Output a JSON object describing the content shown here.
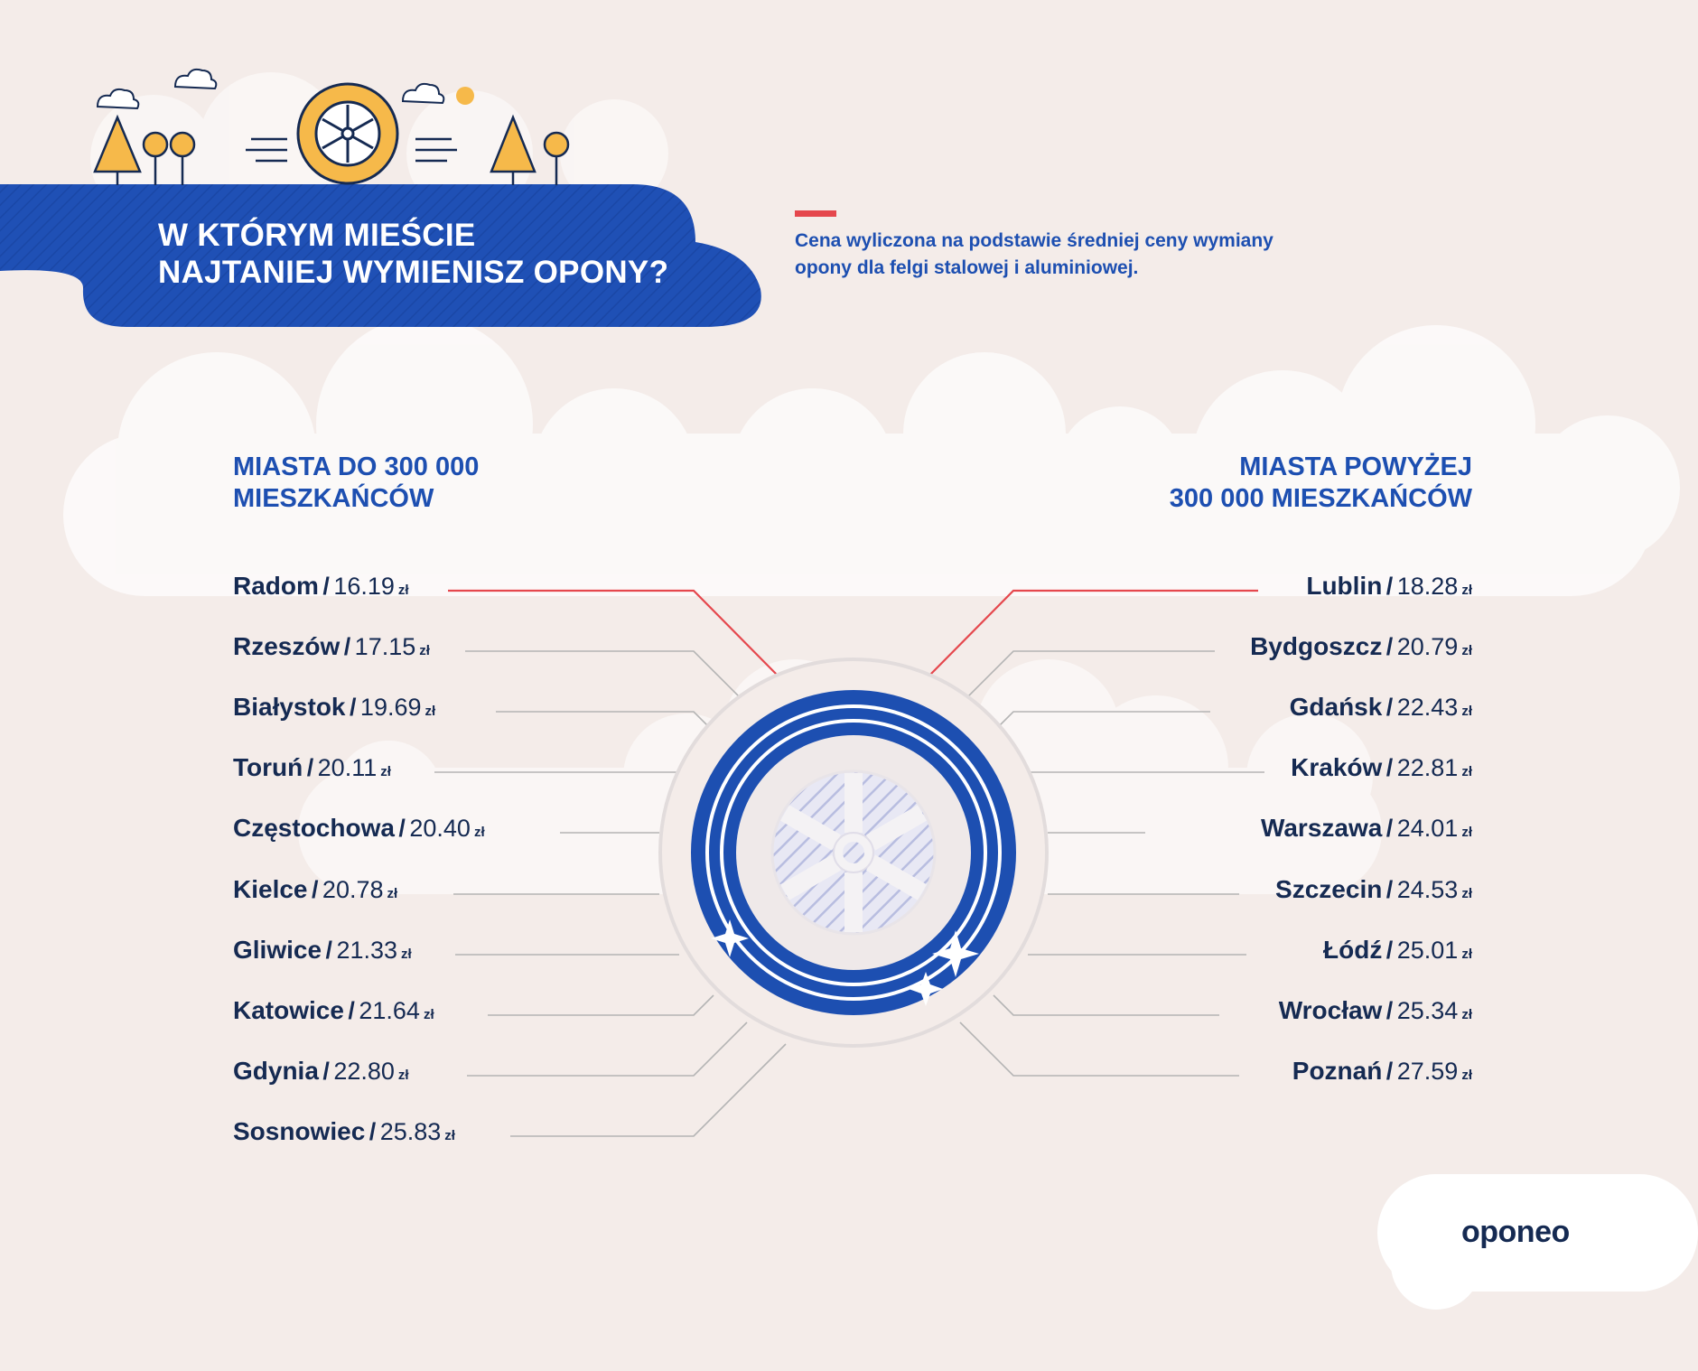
{
  "header": {
    "title_line1": "W KTÓRYM MIEŚCIE",
    "title_line2": "NAJTANIEJ WYMIENISZ OPONY?",
    "note_line1": "Cena wyliczona na podstawie średniej ceny wymiany",
    "note_line2": "opony dla felgi stalowej i aluminiowej."
  },
  "left_column": {
    "heading_line1": "MIASTA DO 300 000",
    "heading_line2": "MIESZKAŃCÓW",
    "items": [
      {
        "city": "Radom",
        "price": "16.19",
        "unit": "zł"
      },
      {
        "city": "Rzeszów",
        "price": "17.15",
        "unit": "zł"
      },
      {
        "city": "Białystok",
        "price": "19.69",
        "unit": "zł"
      },
      {
        "city": "Toruń",
        "price": "20.11",
        "unit": "zł"
      },
      {
        "city": "Częstochowa",
        "price": "20.40",
        "unit": "zł"
      },
      {
        "city": "Kielce",
        "price": "20.78",
        "unit": "zł"
      },
      {
        "city": "Gliwice",
        "price": "21.33",
        "unit": "zł"
      },
      {
        "city": "Katowice",
        "price": "21.64",
        "unit": "zł"
      },
      {
        "city": "Gdynia",
        "price": "22.80",
        "unit": "zł"
      },
      {
        "city": "Sosnowiec",
        "price": "25.83",
        "unit": "zł"
      }
    ]
  },
  "right_column": {
    "heading_line1": "MIASTA POWYŻEJ",
    "heading_line2": "300 000 MIESZKAŃCÓW",
    "items": [
      {
        "city": "Lublin",
        "price": "18.28",
        "unit": "zł"
      },
      {
        "city": "Bydgoszcz",
        "price": "20.79",
        "unit": "zł"
      },
      {
        "city": "Gdańsk",
        "price": "22.43",
        "unit": "zł"
      },
      {
        "city": "Kraków",
        "price": "22.81",
        "unit": "zł"
      },
      {
        "city": "Warszawa",
        "price": "24.01",
        "unit": "zł"
      },
      {
        "city": "Szczecin",
        "price": "24.53",
        "unit": "zł"
      },
      {
        "city": "Łódź",
        "price": "25.01",
        "unit": "zł"
      },
      {
        "city": "Wrocław",
        "price": "25.34",
        "unit": "zł"
      },
      {
        "city": "Poznań",
        "price": "27.59",
        "unit": "zł"
      }
    ]
  },
  "separator": "/",
  "brand": {
    "logo_text": "oponeo"
  },
  "colors": {
    "background": "#f4ece9",
    "brand_blue": "#1d4fb1",
    "dark_navy": "#152a52",
    "accent_red": "#e5474d",
    "accent_yellow": "#f6b94a",
    "connector_grey": "#b4b4b4",
    "cloud_white": "#ffffff"
  },
  "icons": [
    "tire-icon",
    "tree-icon",
    "cloud-icon",
    "sun-icon",
    "sparkle-icon",
    "speed-lines-icon"
  ]
}
